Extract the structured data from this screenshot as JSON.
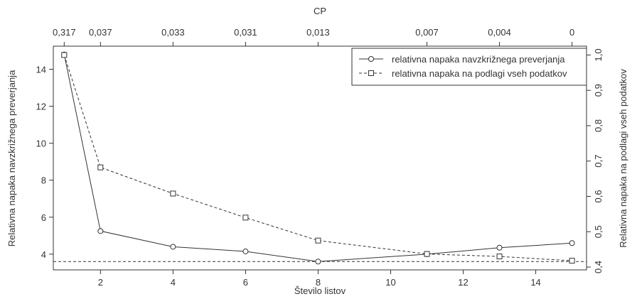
{
  "chart_data": {
    "type": "line",
    "title": "",
    "top_axis": {
      "label": "CP",
      "tick_labels": [
        "0,317",
        "0,037",
        "0,033",
        "0,031",
        "0,013",
        "0,007",
        "0,004",
        "0"
      ],
      "tick_positions": [
        1,
        2,
        4,
        6,
        8,
        11,
        13,
        15
      ]
    },
    "xlabel": "Število listov",
    "ylabel": "Relativna napaka navzkrižnega preverjanja",
    "ylabel_right": "Relativna napaka na podlagi vseh podatkov",
    "x_ticks": [
      2,
      4,
      6,
      8,
      10,
      12,
      14
    ],
    "x_tick_labels": [
      "2",
      "4",
      "6",
      "8",
      "10",
      "12",
      "14"
    ],
    "xlim": [
      0.7,
      15.4
    ],
    "y_ticks": [
      4,
      6,
      8,
      10,
      12,
      14
    ],
    "y_tick_labels": [
      "4",
      "6",
      "8",
      "10",
      "12",
      "14"
    ],
    "ylim": [
      3.15,
      15.25
    ],
    "y2_ticks": [
      0.4,
      0.5,
      0.6,
      0.7,
      0.8,
      0.9,
      1.0
    ],
    "y2_tick_labels": [
      "0,4",
      "0,5",
      "0,6",
      "0,7",
      "0,8",
      "0,9",
      "1,0"
    ],
    "y2lim": [
      0.392,
      1.025
    ],
    "reference_line_y": 3.6,
    "series": [
      {
        "name": "relativna napaka navzkrižnega preverjanja",
        "axis": "left",
        "marker": "circle",
        "line_style": "solid",
        "x": [
          1,
          2,
          4,
          6,
          8,
          11,
          13,
          15
        ],
        "y": [
          14.8,
          5.25,
          4.4,
          4.15,
          3.6,
          4.0,
          4.35,
          4.6
        ]
      },
      {
        "name": "relativna napaka na podlagi vseh podatkov",
        "axis": "right",
        "marker": "square",
        "line_style": "dashed",
        "x": [
          1,
          2,
          4,
          6,
          8,
          11,
          13,
          15
        ],
        "y": [
          1.0,
          0.682,
          0.608,
          0.54,
          0.475,
          0.437,
          0.43,
          0.418
        ]
      }
    ],
    "legend_position": "top-right",
    "grid": false
  }
}
